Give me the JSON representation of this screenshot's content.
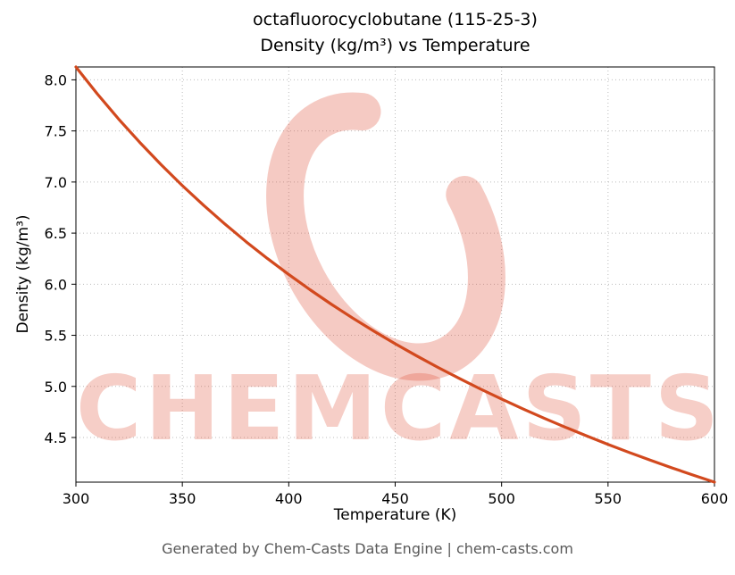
{
  "watermark": {
    "text": "CHEMCASTS"
  },
  "footer": {
    "text": "Generated by Chem-Casts Data Engine | chem-casts.com"
  },
  "chart_data": {
    "type": "line",
    "title_line1": "octafluorocyclobutane (115-25-3)",
    "title_line2": "Density (kg/m³) vs Temperature",
    "xlabel": "Temperature (K)",
    "ylabel": "Density (kg/m³)",
    "xlim": [
      300,
      600
    ],
    "ylim": [
      4.063,
      8.126
    ],
    "xticks": [
      300,
      350,
      400,
      450,
      500,
      550,
      600
    ],
    "xtick_labels": [
      "300",
      "350",
      "400",
      "450",
      "500",
      "550",
      "600"
    ],
    "yticks": [
      4.5,
      5.0,
      5.5,
      6.0,
      6.5,
      7.0,
      7.5,
      8.0
    ],
    "ytick_labels": [
      "4.5",
      "5.0",
      "5.5",
      "6.0",
      "6.5",
      "7.0",
      "7.5",
      "8.0"
    ],
    "grid": true,
    "legend": false,
    "line_color": "#d2491e",
    "series": [
      {
        "name": "density",
        "x": [
          300,
          310,
          320,
          330,
          340,
          350,
          360,
          370,
          380,
          390,
          400,
          410,
          420,
          430,
          440,
          450,
          460,
          470,
          480,
          490,
          500,
          510,
          520,
          530,
          540,
          550,
          560,
          570,
          580,
          590,
          600
        ],
        "y": [
          8.126,
          7.864,
          7.618,
          7.388,
          7.17,
          6.965,
          6.772,
          6.589,
          6.415,
          6.251,
          6.095,
          5.946,
          5.804,
          5.669,
          5.541,
          5.417,
          5.3,
          5.187,
          5.079,
          4.975,
          4.876,
          4.78,
          4.688,
          4.6,
          4.515,
          4.432,
          4.353,
          4.277,
          4.203,
          4.132,
          4.063
        ]
      }
    ]
  }
}
